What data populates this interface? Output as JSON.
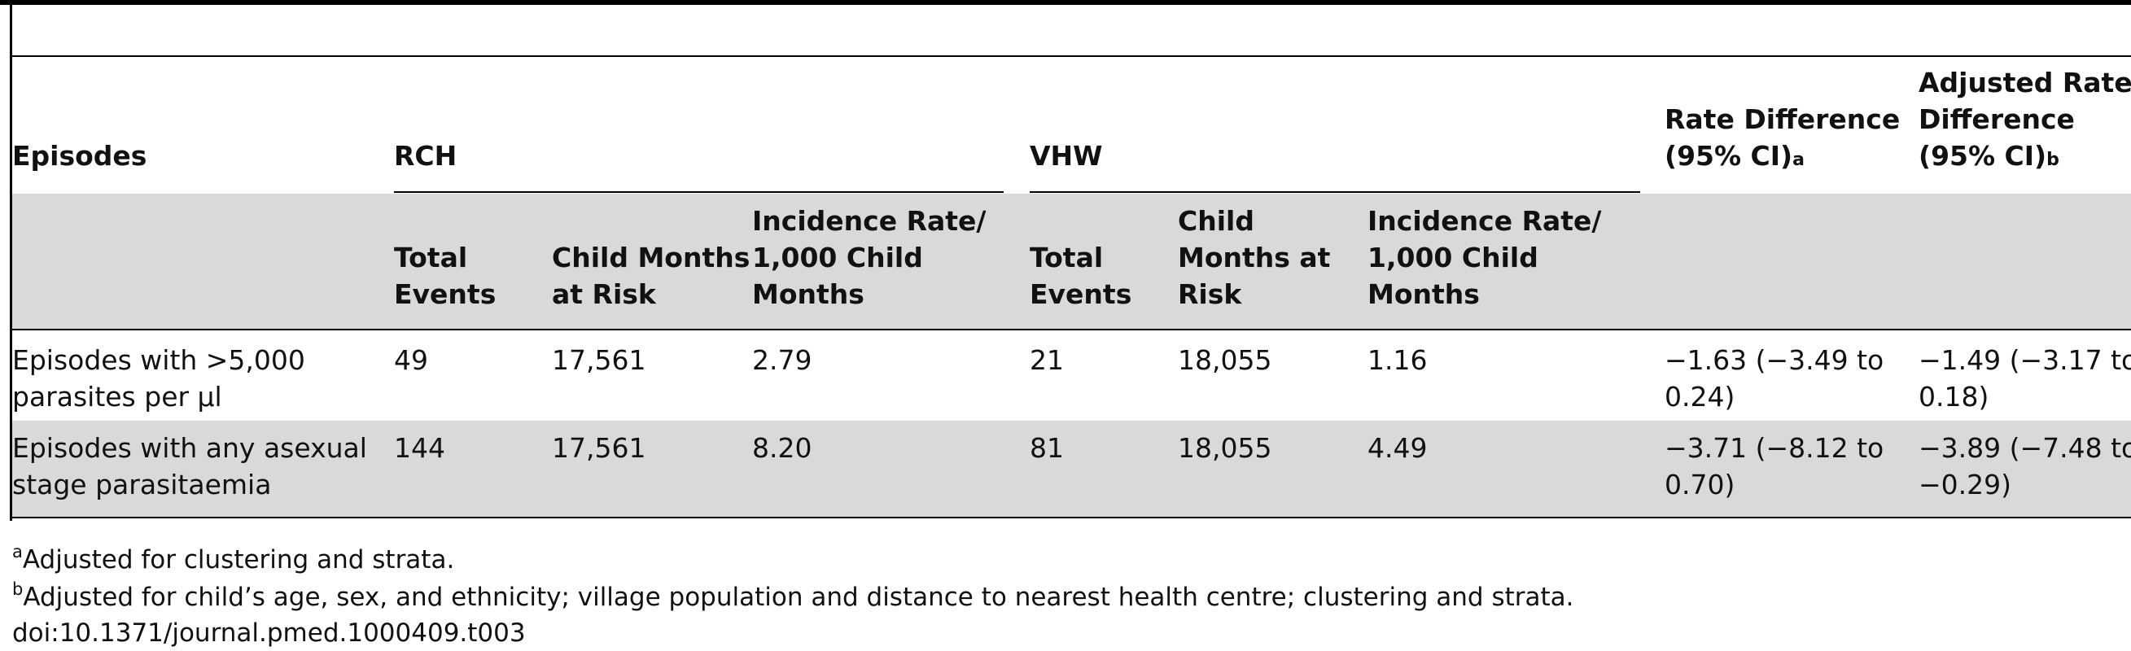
{
  "table": {
    "header": {
      "episodes": "Episodes",
      "rch": "RCH",
      "vhw": "VHW",
      "rate_diff_line1": "Rate Difference",
      "rate_diff_line2": "(95% CI)",
      "rate_diff_mark": "a",
      "adj_line1": "Adjusted Rate",
      "adj_line2": "Difference",
      "adj_line3": "(95% CI)",
      "adj_mark": "b"
    },
    "subheader": {
      "rch_events_1": "Total",
      "rch_events_2": "Events",
      "rch_months_1": "Child Months",
      "rch_months_2": "at Risk",
      "rch_rate_1": "Incidence Rate/",
      "rch_rate_2": "1,000 Child",
      "rch_rate_3": "Months",
      "vhw_events_1": "Total",
      "vhw_events_2": "Events",
      "vhw_months_1": "Child",
      "vhw_months_2": "Months at",
      "vhw_months_3": "Risk",
      "vhw_rate_1": "Incidence Rate/",
      "vhw_rate_2": "1,000 Child",
      "vhw_rate_3": "Months"
    },
    "rows": [
      {
        "label_1": "Episodes with >5,000",
        "label_2": "parasites per µl",
        "rch_events": "49",
        "rch_months": "17,561",
        "rch_rate": "2.79",
        "vhw_events": "21",
        "vhw_months": "18,055",
        "vhw_rate": "1.16",
        "rd_1": "−1.63 (−3.49 to",
        "rd_2": "0.24)",
        "ard_1": "−1.49 (−3.17 to",
        "ard_2": "0.18)"
      },
      {
        "label_1": "Episodes with any asexual",
        "label_2": "stage parasitaemia",
        "rch_events": "144",
        "rch_months": "17,561",
        "rch_rate": "8.20",
        "vhw_events": "81",
        "vhw_months": "18,055",
        "vhw_rate": "4.49",
        "rd_1": "−3.71 (−8.12 to",
        "rd_2": "0.70)",
        "ard_1": "−3.89 (−7.48 to",
        "ard_2": "−0.29)"
      }
    ]
  },
  "footnotes": {
    "a_mark": "a",
    "a_text": "Adjusted for clustering and strata.",
    "b_mark": "b",
    "b_text": "Adjusted for child’s age, sex, and ethnicity; village population and distance to nearest health centre; clustering and strata.",
    "doi": "doi:10.1371/journal.pmed.1000409.t003"
  }
}
